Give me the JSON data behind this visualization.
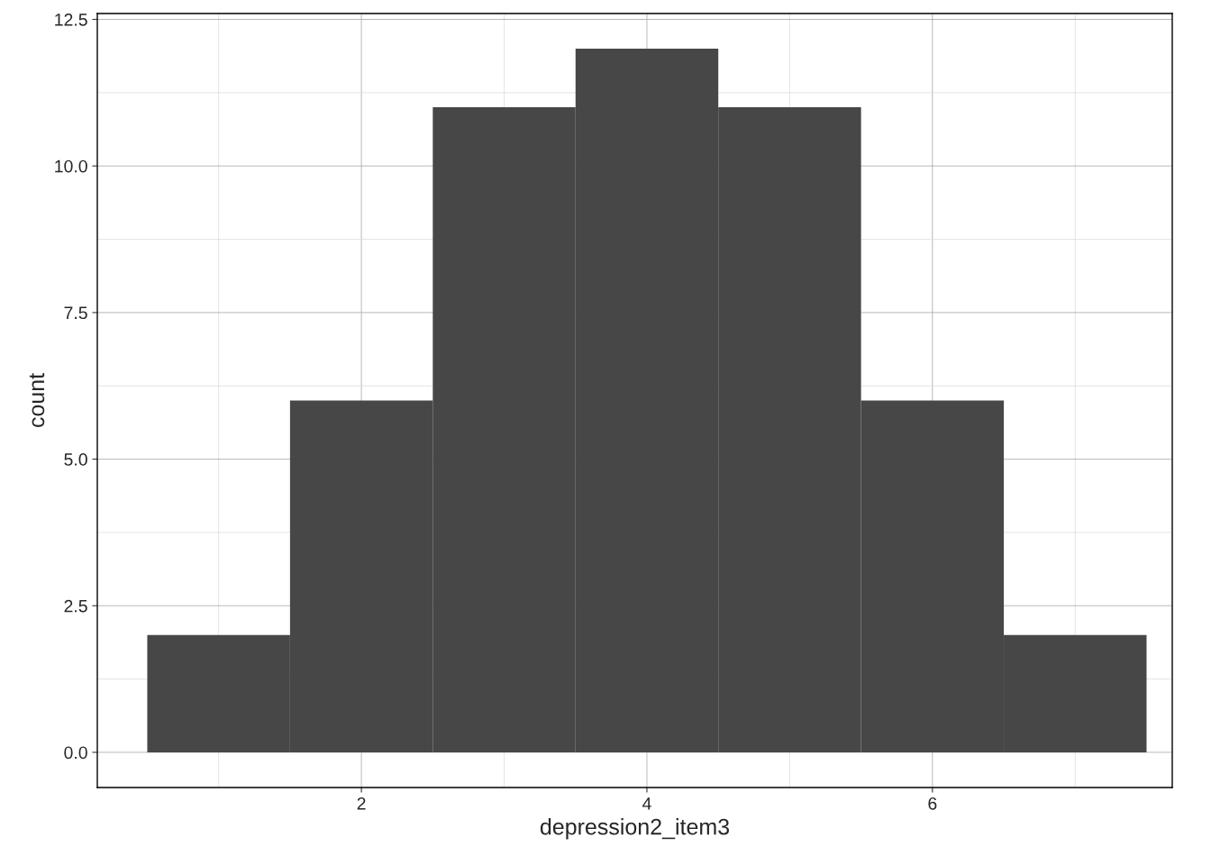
{
  "chart_data": {
    "type": "histogram",
    "xlabel": "depression2_item3",
    "ylabel": "count",
    "bins": [
      0.5,
      1.5,
      2.5,
      3.5,
      4.5,
      5.5,
      6.5,
      7.5
    ],
    "values": [
      2,
      6,
      11,
      12,
      11,
      6,
      2
    ],
    "color": "#474747",
    "xlim": [
      0.15,
      7.68
    ],
    "xticks": [
      2,
      4,
      6
    ],
    "ylim": [
      -0.6,
      12.6
    ],
    "yticks": [
      {
        "value": 0,
        "label": "0.0"
      },
      {
        "value": 2.5,
        "label": "2.5"
      },
      {
        "value": 5,
        "label": "5.0"
      },
      {
        "value": 7.5,
        "label": "7.5"
      },
      {
        "value": 10,
        "label": "10.0"
      },
      {
        "value": 12.5,
        "label": "12.5"
      }
    ],
    "grid": true,
    "legend": false
  }
}
